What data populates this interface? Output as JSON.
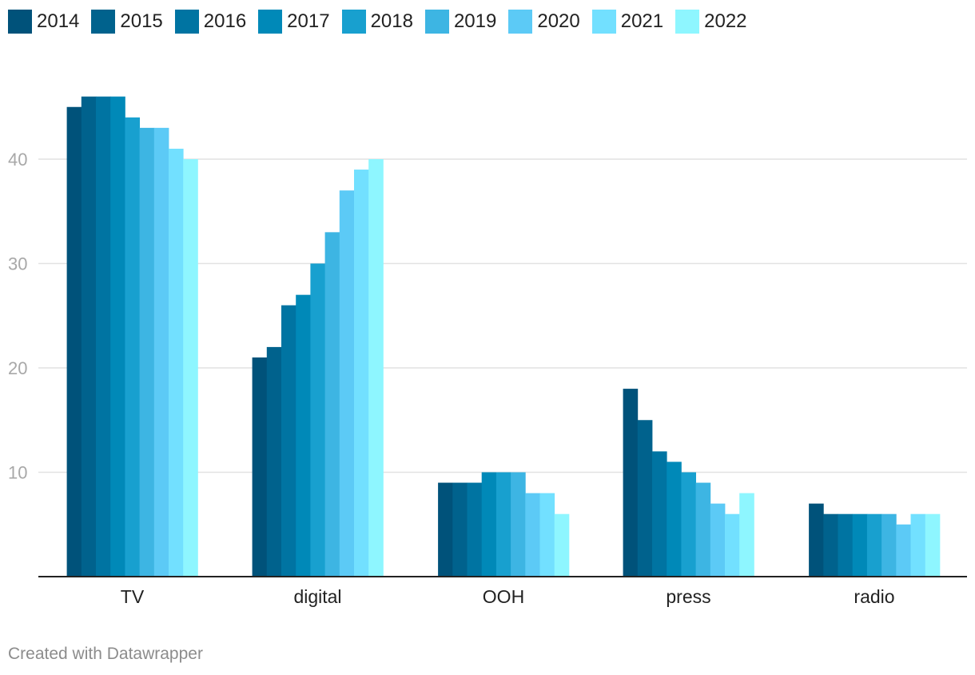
{
  "chart_data": {
    "type": "bar",
    "title": "",
    "xlabel": "",
    "ylabel": "",
    "categories": [
      "TV",
      "digital",
      "OOH",
      "press",
      "radio"
    ],
    "y_ticks": [
      10,
      20,
      30,
      40
    ],
    "ylim": [
      0,
      47
    ],
    "grid": true,
    "legend": "top-left",
    "series": [
      {
        "name": "2014",
        "color": "#00527a",
        "values": [
          45,
          21,
          9,
          18,
          7
        ]
      },
      {
        "name": "2015",
        "color": "#00628d",
        "values": [
          46,
          22,
          9,
          15,
          6
        ]
      },
      {
        "name": "2016",
        "color": "#0074a2",
        "values": [
          46,
          26,
          9,
          12,
          6
        ]
      },
      {
        "name": "2017",
        "color": "#0089b8",
        "values": [
          46,
          27,
          10,
          11,
          6
        ]
      },
      {
        "name": "2018",
        "color": "#18a0cf",
        "values": [
          44,
          30,
          10,
          10,
          6
        ]
      },
      {
        "name": "2019",
        "color": "#3db5e3",
        "values": [
          43,
          33,
          10,
          9,
          6
        ]
      },
      {
        "name": "2020",
        "color": "#5ccaf6",
        "values": [
          43,
          37,
          8,
          7,
          5
        ]
      },
      {
        "name": "2021",
        "color": "#72e0ff",
        "values": [
          41,
          39,
          8,
          6,
          6
        ]
      },
      {
        "name": "2022",
        "color": "#8ef6ff",
        "values": [
          40,
          40,
          6,
          8,
          6
        ]
      }
    ]
  },
  "footer": {
    "credit": "Created with Datawrapper"
  },
  "colors": {
    "grid": "#e2e2e2",
    "axis": "#222222",
    "tick_label": "#a8a8a8",
    "category_label": "#222222"
  }
}
